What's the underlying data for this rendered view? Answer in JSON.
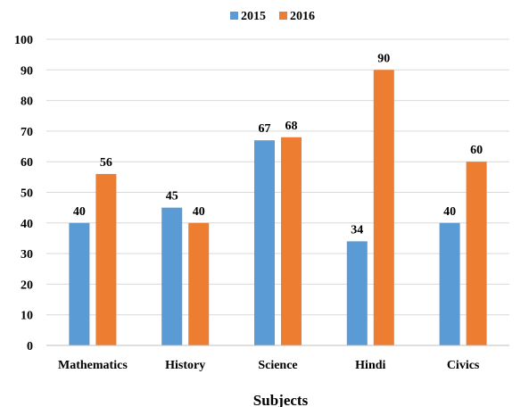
{
  "chart_data": {
    "type": "bar",
    "categories": [
      "Mathematics",
      "History",
      "Science",
      "Hindi",
      "Civics"
    ],
    "series": [
      {
        "name": "2015",
        "values": [
          40,
          45,
          67,
          34,
          40
        ],
        "color": "#5B9BD5"
      },
      {
        "name": "2016",
        "values": [
          56,
          40,
          68,
          90,
          60
        ],
        "color": "#ED7D31"
      }
    ],
    "xlabel": "Subjects",
    "ylabel": "",
    "ylim": [
      0,
      100
    ],
    "yticks": [
      0,
      10,
      20,
      30,
      40,
      50,
      60,
      70,
      80,
      90,
      100
    ],
    "grid": true,
    "legend": "top-center"
  }
}
